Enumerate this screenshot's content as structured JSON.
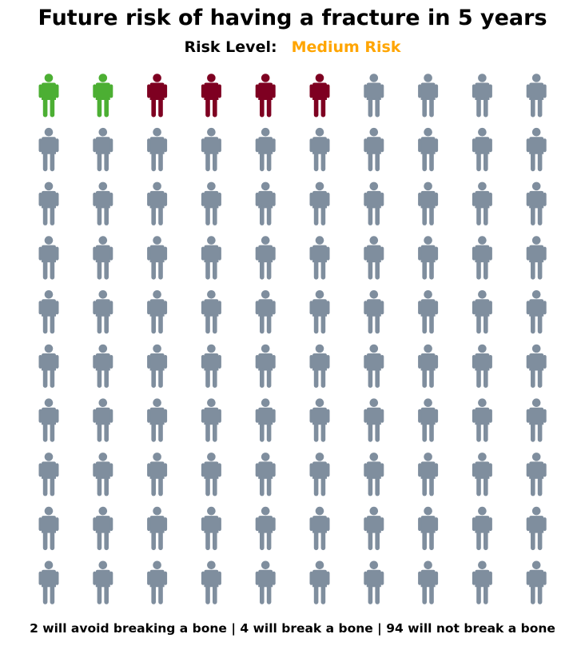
{
  "title": "Future risk of having a fracture in 5 years",
  "risk": {
    "label": "Risk Level:",
    "value": "Medium Risk",
    "color": "#FFA500"
  },
  "chart_data": {
    "type": "icon-array",
    "total": 100,
    "columns": 10,
    "rows": 10,
    "icon": "person-icon",
    "groups": [
      {
        "key": "avoid",
        "count": 2,
        "color": "#4CAF33"
      },
      {
        "key": "break",
        "count": 4,
        "color": "#7E0021"
      },
      {
        "key": "not_break",
        "count": 94,
        "color": "#7F8E9E"
      }
    ],
    "summary": "2 will avoid breaking a bone | 4 will break a bone | 94 will not break a bone"
  }
}
